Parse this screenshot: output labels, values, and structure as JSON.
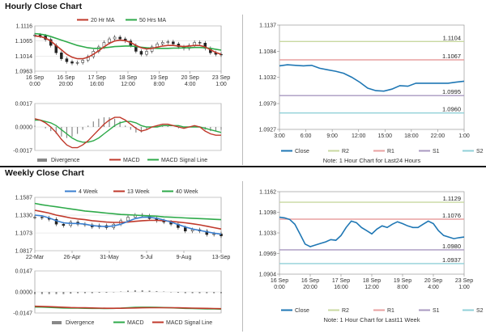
{
  "sections": {
    "hourly_title": "Hourly Close Chart",
    "weekly_title": "Weekly Close Chart"
  },
  "colors": {
    "ma_short": "#c0392b",
    "ma_long": "#2eaa4a",
    "ma4": "#3a7fd0",
    "close_line": "#1f77b4",
    "r2": "#c8d8a0",
    "r1": "#e8a0a0",
    "s1": "#a898c0",
    "s2": "#90d0d8",
    "macd": "#c0392b",
    "signal": "#2eaa4a",
    "divergence": "#888888",
    "grid": "#d8d8d8",
    "axis": "#888888"
  },
  "chart_data": [
    {
      "id": "hourly_candles",
      "type": "line",
      "title": "",
      "legend": [
        {
          "label": "20 Hr MA",
          "color_key": "ma_short"
        },
        {
          "label": "50 Hrs MA",
          "color_key": "ma_long"
        }
      ],
      "ylim": [
        1.0963,
        1.1116
      ],
      "yticks": [
        "1.1116",
        "1.1065",
        "1.1014",
        "1.0963"
      ],
      "xticks": [
        "16 Sep\n0:00",
        "16 Sep\n20:00",
        "17 Sep\n16:00",
        "18 Sep\n12:00",
        "19 Sep\n8:00",
        "20 Sep\n4:00",
        "23 Sep\n1:00"
      ],
      "price": [
        1.1085,
        1.1082,
        1.107,
        1.105,
        1.1025,
        1.1005,
        1.0995,
        1.099,
        1.0992,
        1.1,
        1.1012,
        1.103,
        1.1045,
        1.106,
        1.1072,
        1.1078,
        1.1072,
        1.1065,
        1.105,
        1.103,
        1.102,
        1.103,
        1.1045,
        1.1055,
        1.106,
        1.1062,
        1.1055,
        1.1045,
        1.104,
        1.105,
        1.106,
        1.1058,
        1.104,
        1.1025,
        1.102,
        1.1018
      ],
      "series": [
        {
          "name": "20 Hr MA",
          "values": [
            1.1082,
            1.108,
            1.1075,
            1.1065,
            1.105,
            1.1035,
            1.102,
            1.101,
            1.1005,
            1.1005,
            1.101,
            1.102,
            1.1032,
            1.1045,
            1.1057,
            1.1065,
            1.1068,
            1.1066,
            1.106,
            1.105,
            1.1042,
            1.1038,
            1.104,
            1.1044,
            1.1048,
            1.105,
            1.105,
            1.1048,
            1.1046,
            1.1048,
            1.105,
            1.105,
            1.1045,
            1.1035,
            1.1026,
            1.102
          ]
        },
        {
          "name": "50 Hrs MA",
          "values": [
            1.109,
            1.1088,
            1.1085,
            1.108,
            1.1074,
            1.1068,
            1.1062,
            1.1056,
            1.105,
            1.1046,
            1.1042,
            1.104,
            1.104,
            1.1042,
            1.1044,
            1.1046,
            1.1047,
            1.1048,
            1.1048,
            1.1046,
            1.1044,
            1.1042,
            1.1041,
            1.104,
            1.104,
            1.104,
            1.1041,
            1.1041,
            1.1042,
            1.1042,
            1.1043,
            1.1043,
            1.1042,
            1.104,
            1.1037,
            1.1034
          ]
        }
      ]
    },
    {
      "id": "hourly_macd",
      "type": "line",
      "ylim": [
        -0.0017,
        0.0017
      ],
      "yticks": [
        "0.0017",
        "0.0000",
        "-0.0017"
      ],
      "legend": [
        {
          "label": "Divergence",
          "color_key": "divergence"
        },
        {
          "label": "MACD",
          "color_key": "macd"
        },
        {
          "label": "MACD Signal Line",
          "color_key": "signal"
        }
      ],
      "series": [
        {
          "name": "MACD",
          "values": [
            0.0006,
            0.0005,
            0.0003,
            0.0,
            -0.0004,
            -0.0009,
            -0.0013,
            -0.0015,
            -0.0015,
            -0.0013,
            -0.001,
            -0.0006,
            -0.0002,
            0.0002,
            0.0005,
            0.0007,
            0.0007,
            0.0005,
            0.0002,
            -0.0001,
            -0.0003,
            -0.0002,
            0.0,
            0.0001,
            0.0002,
            0.0002,
            0.0001,
            0.0,
            -0.0001,
            0.0,
            0.0001,
            0.0,
            -0.0003,
            -0.0005,
            -0.0006,
            -0.0006
          ]
        },
        {
          "name": "MACD Signal Line",
          "values": [
            0.0005,
            0.0005,
            0.0004,
            0.0003,
            0.0001,
            -0.0002,
            -0.0005,
            -0.0008,
            -0.001,
            -0.0011,
            -0.0011,
            -0.001,
            -0.0008,
            -0.0005,
            -0.0002,
            0.0001,
            0.0003,
            0.0004,
            0.0004,
            0.0003,
            0.0001,
            0.0,
            0.0,
            0.0,
            0.0001,
            0.0001,
            0.0001,
            0.0001,
            0.0,
            0.0,
            0.0,
            0.0,
            -0.0001,
            -0.0002,
            -0.0003,
            -0.0004
          ]
        }
      ]
    },
    {
      "id": "hourly_pivots",
      "type": "line",
      "ylim": [
        1.0927,
        1.1137
      ],
      "yticks": [
        "1.1137",
        "1.1084",
        "1.1032",
        "1.0979",
        "1.0927"
      ],
      "xticks": [
        "3:00",
        "6:00",
        "9:00",
        "12:00",
        "15:00",
        "18:00",
        "22:00",
        "1:00"
      ],
      "levels": [
        {
          "name": "R2",
          "value": 1.1104,
          "label": "1.1104",
          "color_key": "r2"
        },
        {
          "name": "R1",
          "value": 1.1067,
          "label": "1.1067",
          "color_key": "r1"
        },
        {
          "name": "S1",
          "value": 1.0995,
          "label": "1.0995",
          "color_key": "s1"
        },
        {
          "name": "S2",
          "value": 1.096,
          "label": "1.0960",
          "color_key": "s2"
        }
      ],
      "series": [
        {
          "name": "Close",
          "values": [
            1.1055,
            1.1057,
            1.1056,
            1.1055,
            1.1056,
            1.105,
            1.1047,
            1.1044,
            1.104,
            1.1032,
            1.1022,
            1.101,
            1.1005,
            1.1004,
            1.1008,
            1.1015,
            1.1014,
            1.102,
            1.102,
            1.102,
            1.102,
            1.102,
            1.1022,
            1.1024
          ]
        }
      ],
      "legend": [
        {
          "label": "Close",
          "color_key": "close_line"
        },
        {
          "label": "R2",
          "color_key": "r2"
        },
        {
          "label": "R1",
          "color_key": "r1"
        },
        {
          "label": "S1",
          "color_key": "s1"
        },
        {
          "label": "S2",
          "color_key": "s2"
        }
      ],
      "note": "Note: 1 Hour Chart for Last24 Hours"
    },
    {
      "id": "weekly_candles",
      "type": "line",
      "legend": [
        {
          "label": "4 Week",
          "color_key": "ma4"
        },
        {
          "label": "13 Week",
          "color_key": "ma_short"
        },
        {
          "label": "40 Week",
          "color_key": "ma_long"
        }
      ],
      "ylim": [
        1.0817,
        1.1587
      ],
      "yticks": [
        "1.1587",
        "1.1330",
        "1.1073",
        "1.0817"
      ],
      "xticks": [
        "22-Mar",
        "26-Apr",
        "31-May",
        "5-Jul",
        "9-Aug",
        "13-Sep"
      ],
      "price": [
        1.13,
        1.129,
        1.127,
        1.12,
        1.118,
        1.123,
        1.12,
        1.119,
        1.116,
        1.118,
        1.115,
        1.12,
        1.125,
        1.13,
        1.133,
        1.132,
        1.128,
        1.125,
        1.123,
        1.12,
        1.115,
        1.11,
        1.112,
        1.11,
        1.105,
        1.106,
        1.103
      ],
      "series": [
        {
          "name": "4 Week",
          "values": [
            1.133,
            1.132,
            1.129,
            1.125,
            1.122,
            1.121,
            1.121,
            1.12,
            1.118,
            1.117,
            1.1165,
            1.1175,
            1.12,
            1.124,
            1.128,
            1.13,
            1.13,
            1.1285,
            1.126,
            1.123,
            1.1195,
            1.116,
            1.113,
            1.111,
            1.109,
            1.107,
            1.1055
          ]
        },
        {
          "name": "13 Week",
          "values": [
            1.14,
            1.138,
            1.136,
            1.133,
            1.131,
            1.129,
            1.1275,
            1.1265,
            1.125,
            1.124,
            1.123,
            1.1225,
            1.1225,
            1.123,
            1.124,
            1.125,
            1.1255,
            1.1255,
            1.125,
            1.124,
            1.123,
            1.122,
            1.1205,
            1.119,
            1.117,
            1.115,
            1.113
          ]
        },
        {
          "name": "40 Week",
          "values": [
            1.15,
            1.148,
            1.1465,
            1.145,
            1.1435,
            1.142,
            1.1405,
            1.139,
            1.138,
            1.137,
            1.136,
            1.135,
            1.134,
            1.1335,
            1.133,
            1.1325,
            1.132,
            1.1315,
            1.1305,
            1.13,
            1.1295,
            1.129,
            1.1285,
            1.128,
            1.1275,
            1.127,
            1.1265
          ]
        }
      ]
    },
    {
      "id": "weekly_macd",
      "type": "line",
      "ylim": [
        -0.0147,
        0.0147
      ],
      "yticks": [
        "0.0147",
        "0.0000",
        "-0.0147"
      ],
      "legend": [
        {
          "label": "Divergence",
          "color_key": "divergence"
        },
        {
          "label": "MACD",
          "color_key": "signal"
        },
        {
          "label": "MACD Signal Line",
          "color_key": "macd"
        }
      ],
      "series": [
        {
          "name": "MACD",
          "values": [
            -0.0105,
            -0.0106,
            -0.0108,
            -0.011,
            -0.0112,
            -0.0113,
            -0.0113,
            -0.0114,
            -0.0115,
            -0.0115,
            -0.0116,
            -0.0115,
            -0.0113,
            -0.011,
            -0.0108,
            -0.0107,
            -0.0107,
            -0.0108,
            -0.0109,
            -0.0111,
            -0.0113,
            -0.0115,
            -0.0116,
            -0.0117,
            -0.0118,
            -0.0119,
            -0.012
          ]
        },
        {
          "name": "MACD Signal Line",
          "values": [
            -0.01,
            -0.0101,
            -0.0103,
            -0.0105,
            -0.0107,
            -0.0109,
            -0.011,
            -0.0111,
            -0.0112,
            -0.0113,
            -0.0114,
            -0.0114,
            -0.0114,
            -0.0113,
            -0.0112,
            -0.0111,
            -0.011,
            -0.011,
            -0.011,
            -0.011,
            -0.0111,
            -0.0112,
            -0.0113,
            -0.0114,
            -0.0115,
            -0.0116,
            -0.0117
          ]
        }
      ]
    },
    {
      "id": "weekly_pivots",
      "type": "line",
      "ylim": [
        1.0904,
        1.1162
      ],
      "yticks": [
        "1.1162",
        "1.1098",
        "1.1033",
        "1.0969",
        "1.0904"
      ],
      "xticks": [
        "16 Sep\n0:00",
        "16 Sep\n20:00",
        "17 Sep\n16:00",
        "18 Sep\n12:00",
        "19 Sep\n8:00",
        "20 Sep\n4:00",
        "23 Sep\n1:00"
      ],
      "levels": [
        {
          "name": "R2",
          "value": 1.1129,
          "label": "1.1129",
          "color_key": "r2"
        },
        {
          "name": "R1",
          "value": 1.1076,
          "label": "1.1076",
          "color_key": "r1"
        },
        {
          "name": "S1",
          "value": 1.098,
          "label": "1.0980",
          "color_key": "s1"
        },
        {
          "name": "S2",
          "value": 1.0937,
          "label": "1.0937",
          "color_key": "s2"
        }
      ],
      "series": [
        {
          "name": "Close",
          "values": [
            1.1082,
            1.108,
            1.1075,
            1.106,
            1.103,
            1.0998,
            1.099,
            1.0995,
            1.1,
            1.1005,
            1.1012,
            1.101,
            1.1025,
            1.105,
            1.107,
            1.1065,
            1.105,
            1.104,
            1.103,
            1.1045,
            1.1055,
            1.105,
            1.106,
            1.1068,
            1.1062,
            1.1055,
            1.105,
            1.105,
            1.106,
            1.107,
            1.1062,
            1.104,
            1.1025,
            1.102,
            1.1015,
            1.1018,
            1.102
          ]
        }
      ],
      "legend": [
        {
          "label": "Close",
          "color_key": "close_line"
        },
        {
          "label": "R2",
          "color_key": "r2"
        },
        {
          "label": "R1",
          "color_key": "r1"
        },
        {
          "label": "S1",
          "color_key": "s1"
        },
        {
          "label": "S2",
          "color_key": "s2"
        }
      ],
      "note": "Note: 1 Hour Chart for Last11 Week"
    }
  ]
}
